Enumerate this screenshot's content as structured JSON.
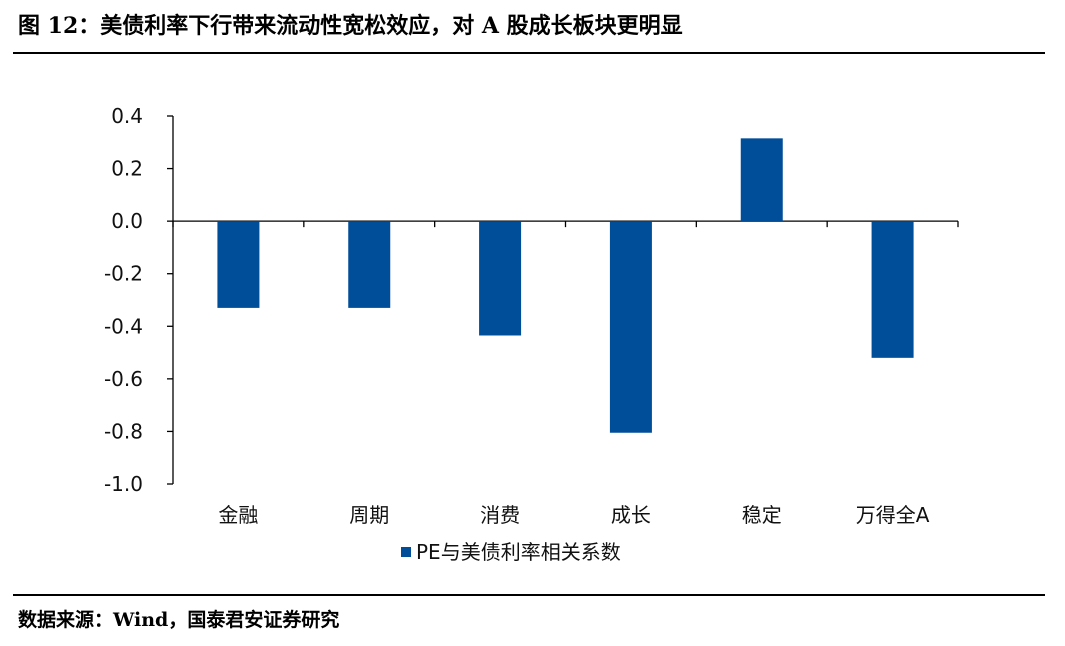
{
  "figure": {
    "title": "图 12：美债利率下行带来流动性宽松效应，对 A 股成长板块更明显",
    "source": "数据来源：Wind，国泰君安证券研究"
  },
  "chart_data": {
    "type": "bar",
    "categories": [
      "金融",
      "周期",
      "消费",
      "成长",
      "稳定",
      "万得全A"
    ],
    "series": [
      {
        "name": "PE与美债利率相关系数",
        "values": [
          -0.33,
          -0.33,
          -0.435,
          -0.805,
          0.315,
          -0.52
        ],
        "color": "#004d99"
      }
    ],
    "ylim": [
      -1.0,
      0.4
    ],
    "yticks": [
      0.4,
      0.2,
      0.0,
      -0.2,
      -0.4,
      -0.6,
      -0.8,
      -1.0
    ],
    "ytick_labels": [
      "0.4",
      "0.2",
      "0.0",
      "-0.2",
      "-0.4",
      "-0.6",
      "-0.8",
      "-1.0"
    ],
    "grid": false,
    "legend_position": "bottom-center"
  }
}
